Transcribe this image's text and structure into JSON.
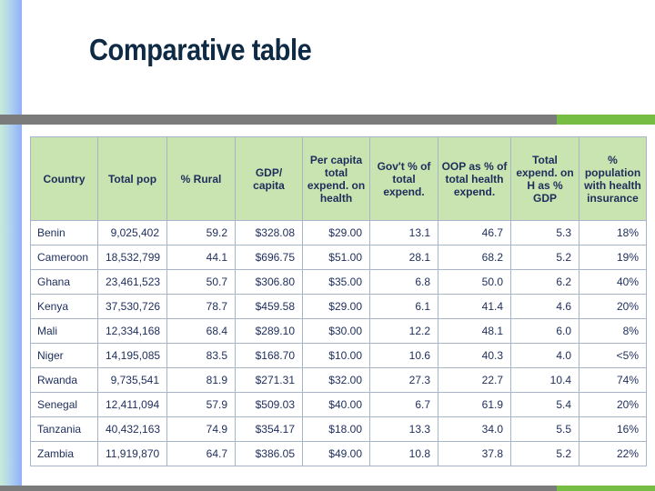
{
  "slide": {
    "title": "Comparative table",
    "colors": {
      "title": "#0f2a44",
      "rule_gray": "#7b7b7b",
      "rule_green": "#76bd43",
      "header_bg": "#c9e4b0",
      "text": "#1d2d5c"
    }
  },
  "table": {
    "headers": [
      "Country",
      "Total pop",
      "% Rural",
      "GDP/ capita",
      "Per capita total expend. on health",
      "Gov't % of total expend.",
      "OOP as % of total health expend.",
      "Total expend. on H as % GDP",
      "% population with health insurance"
    ],
    "rows": [
      [
        "Benin",
        "9,025,402",
        "59.2",
        "$328.08",
        "$29.00",
        "13.1",
        "46.7",
        "5.3",
        "18%"
      ],
      [
        "Cameroon",
        "18,532,799",
        "44.1",
        "$696.75",
        "$51.00",
        "28.1",
        "68.2",
        "5.2",
        "19%"
      ],
      [
        "Ghana",
        "23,461,523",
        "50.7",
        "$306.80",
        "$35.00",
        "6.8",
        "50.0",
        "6.2",
        "40%"
      ],
      [
        "Kenya",
        "37,530,726",
        "78.7",
        "$459.58",
        "$29.00",
        "6.1",
        "41.4",
        "4.6",
        "20%"
      ],
      [
        "Mali",
        "12,334,168",
        "68.4",
        "$289.10",
        "$30.00",
        "12.2",
        "48.1",
        "6.0",
        "8%"
      ],
      [
        "Niger",
        "14,195,085",
        "83.5",
        "$168.70",
        "$10.00",
        "10.6",
        "40.3",
        "4.0",
        "<5%"
      ],
      [
        "Rwanda",
        "9,735,541",
        "81.9",
        "$271.31",
        "$32.00",
        "27.3",
        "22.7",
        "10.4",
        "74%"
      ],
      [
        "Senegal",
        "12,411,094",
        "57.9",
        "$509.03",
        "$40.00",
        "6.7",
        "61.9",
        "5.4",
        "20%"
      ],
      [
        "Tanzania",
        "40,432,163",
        "74.9",
        "$354.17",
        "$18.00",
        "13.3",
        "34.0",
        "5.5",
        "16%"
      ],
      [
        "Zambia",
        "11,919,870",
        "64.7",
        "$386.05",
        "$49.00",
        "10.8",
        "37.8",
        "5.2",
        "22%"
      ]
    ]
  }
}
